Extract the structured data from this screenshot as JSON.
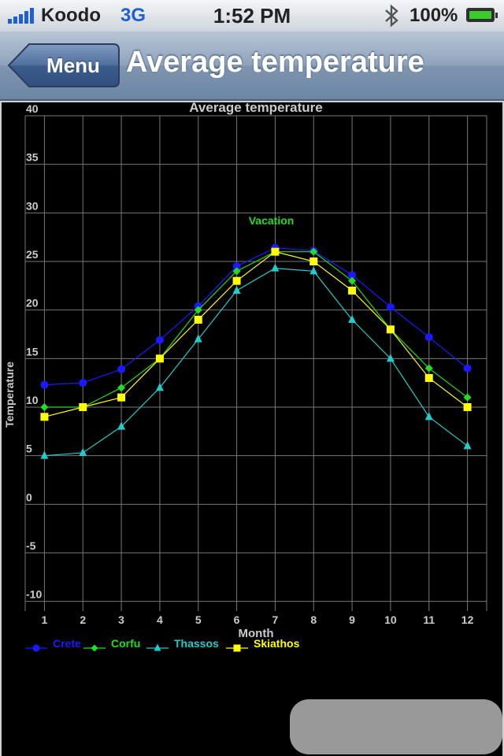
{
  "statusbar": {
    "carrier": "Koodo",
    "network": "3G",
    "time": "1:52 PM",
    "battery": "100%",
    "icons": [
      "signal-bars-icon",
      "bluetooth-icon",
      "battery-charging-icon"
    ]
  },
  "navbar": {
    "back_label": "Menu",
    "title": "Average temperature"
  },
  "colors": {
    "Crete": "#1a1aff",
    "Corfu": "#22dd22",
    "Thassos": "#22cccc",
    "Skiathos": "#ffff00",
    "grid": "#777777",
    "axis_text": "#cccccc",
    "annotation": "#22dd22"
  },
  "chart_data": {
    "type": "line",
    "title": "Average temperature",
    "xlabel": "Month",
    "ylabel": "Temperature",
    "x": [
      1,
      2,
      3,
      4,
      5,
      6,
      7,
      8,
      9,
      10,
      11,
      12
    ],
    "xlim": [
      0.5,
      12.5
    ],
    "ylim": [
      -11,
      40
    ],
    "yticks": [
      -10,
      -5,
      0,
      5,
      10,
      15,
      20,
      25,
      30,
      35,
      40
    ],
    "grid": true,
    "legend": "bottom-left",
    "annotations": [
      {
        "text": "Vacation",
        "x": 6.9,
        "y": 28.8
      }
    ],
    "series": [
      {
        "name": "Crete",
        "marker": "circle",
        "values": [
          12.3,
          12.5,
          13.9,
          16.9,
          20.4,
          24.5,
          26.4,
          26.1,
          23.6,
          20.3,
          17.2,
          14
        ]
      },
      {
        "name": "Corfu",
        "marker": "diamond",
        "values": [
          10,
          10,
          12,
          15,
          20,
          24,
          26,
          26,
          23,
          18,
          14,
          11
        ]
      },
      {
        "name": "Thassos",
        "marker": "triangle",
        "values": [
          5,
          5.3,
          8,
          12,
          17,
          22,
          24.3,
          24,
          19,
          15,
          9,
          6
        ]
      },
      {
        "name": "Skiathos",
        "marker": "square",
        "values": [
          9,
          10,
          11,
          15,
          19,
          23,
          26,
          25,
          22,
          18,
          13,
          10
        ]
      }
    ]
  }
}
